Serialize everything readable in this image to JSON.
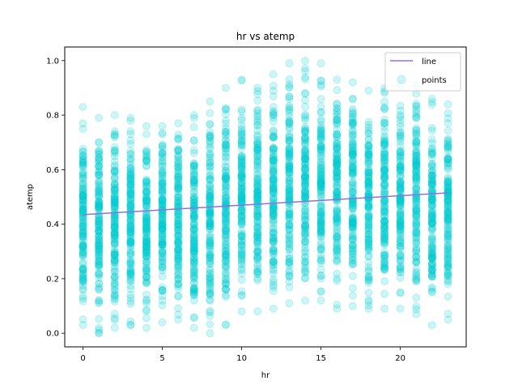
{
  "chart_data": {
    "type": "scatter",
    "title": "hr vs atemp",
    "xlabel": "hr",
    "ylabel": "atemp",
    "xlim": [
      -1.15,
      24.15
    ],
    "ylim": [
      -0.05,
      1.05
    ],
    "xticks": [
      0,
      5,
      10,
      15,
      20
    ],
    "yticks": [
      0.0,
      0.2,
      0.4,
      0.6,
      0.8,
      1.0
    ],
    "grid": false,
    "legend_position": "top-right",
    "colors": {
      "line": "#9370db",
      "points": "#00ced1"
    },
    "series": [
      {
        "name": "line",
        "kind": "line",
        "x": [
          0,
          23
        ],
        "y": [
          0.435,
          0.515
        ]
      },
      {
        "name": "points",
        "kind": "scatter",
        "x": [
          0,
          1,
          2,
          3,
          4,
          5,
          6,
          7,
          8,
          9,
          10,
          11,
          12,
          13,
          14,
          15,
          16,
          17,
          18,
          19,
          20,
          21,
          22,
          23
        ],
        "ymin": [
          0.03,
          0.0,
          0.02,
          0.03,
          0.02,
          0.04,
          0.05,
          0.02,
          0.0,
          0.03,
          0.08,
          0.08,
          0.09,
          0.11,
          0.12,
          0.12,
          0.09,
          0.1,
          0.09,
          0.09,
          0.09,
          0.07,
          0.03,
          0.05
        ],
        "ymax": [
          0.83,
          0.79,
          0.8,
          0.79,
          0.76,
          0.76,
          0.77,
          0.8,
          0.85,
          0.9,
          0.93,
          0.9,
          0.95,
          0.99,
          1.0,
          0.99,
          0.93,
          0.92,
          0.89,
          0.9,
          0.91,
          0.91,
          0.86,
          0.84
        ],
        "points_per_x": 140
      }
    ],
    "legend": [
      "line",
      "points"
    ]
  }
}
